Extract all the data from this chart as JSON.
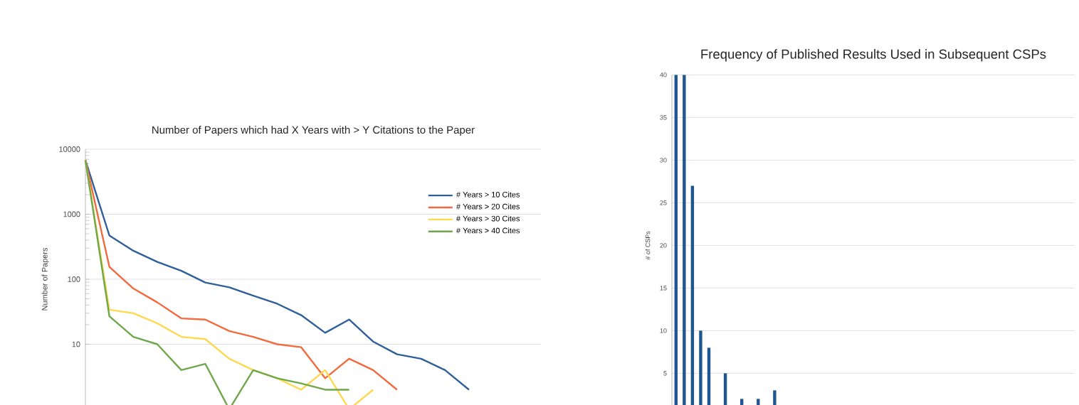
{
  "chart_data": [
    {
      "type": "line",
      "title": "Number of Papers which had X Years with > Y Citations to the Paper",
      "ylabel": "Number of Papers",
      "categories": [
        null,
        null,
        null,
        null,
        null,
        null,
        null,
        null,
        null,
        null,
        null,
        null,
        null,
        null,
        null,
        null,
        null,
        null,
        null,
        null
      ],
      "series": [
        {
          "name": "# Years > 10 Cites",
          "color": "#2e5f9a",
          "values": [
            6800,
            470,
            274,
            185,
            135,
            89,
            75,
            56,
            42,
            28,
            15,
            24,
            11,
            7,
            6,
            4,
            2,
            null,
            null,
            null
          ]
        },
        {
          "name": "# Years > 20 Cites",
          "color": "#f26a3d",
          "values": [
            6800,
            155,
            72,
            44,
            25,
            24,
            16,
            13,
            10,
            9,
            3,
            6,
            4,
            2,
            null,
            null,
            null,
            null,
            null,
            null
          ]
        },
        {
          "name": "# Years > 30 Cites",
          "color": "#ffd84d",
          "values": [
            6800,
            34,
            30,
            21,
            13,
            12,
            6,
            4,
            3,
            2,
            4,
            1,
            2,
            null,
            null,
            null,
            null,
            null,
            null,
            null
          ]
        },
        {
          "name": "# Years > 40 Cites",
          "color": "#6fa84a",
          "values": [
            6800,
            27,
            13,
            10,
            4,
            5,
            1,
            4,
            3,
            2.5,
            2,
            2,
            null,
            null,
            null,
            null,
            null,
            null,
            null,
            null
          ]
        }
      ],
      "log": "y",
      "ylim": [
        1,
        10000
      ],
      "yticks": [
        10,
        100,
        1000,
        10000
      ],
      "grid": "y",
      "legend": "top right",
      "marker": "none",
      "line_style": "solid",
      "tick_labels": "y"
    },
    {
      "type": "bar",
      "title": "Frequency of Published Results Used in Subsequent CSPs",
      "ylabel": "# of CSPs",
      "categories": [
        null,
        null,
        null,
        null,
        null,
        null,
        null,
        null,
        null,
        null,
        null,
        null,
        null,
        null,
        null,
        null,
        null,
        null,
        null,
        null,
        null,
        null,
        null,
        null,
        null,
        null,
        null,
        null,
        null,
        null,
        null,
        null,
        null,
        null,
        null,
        null,
        null,
        null,
        null,
        null,
        null,
        null,
        null,
        null,
        null,
        null,
        null,
        null,
        null
      ],
      "values": [
        40,
        40,
        27,
        10,
        8,
        null,
        5,
        null,
        2,
        null,
        2,
        null,
        3,
        null,
        null,
        null,
        null,
        null,
        null,
        null,
        null,
        null,
        null,
        null,
        null,
        null,
        null,
        null,
        null,
        null,
        null,
        null,
        null,
        null,
        null,
        null,
        null,
        null,
        null,
        null,
        null,
        null,
        null,
        null,
        null,
        null,
        null,
        null,
        null
      ],
      "color": "#1f5591",
      "ylim": [
        0,
        40
      ],
      "yticks": [
        5,
        10,
        15,
        20,
        25,
        30,
        35,
        40
      ],
      "grid": "y",
      "tick_labels": "y"
    }
  ]
}
